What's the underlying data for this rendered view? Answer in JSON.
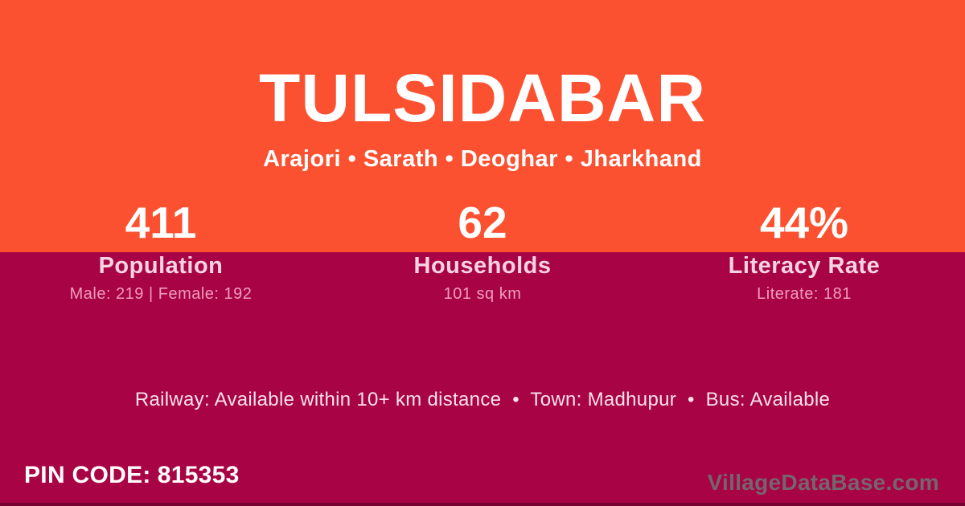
{
  "header": {
    "title": "TULSIDABAR",
    "location_path": "Arajori • Sarath • Deoghar • Jharkhand"
  },
  "stats": [
    {
      "value": "411",
      "label": "Population",
      "detail": "Male: 219 | Female: 192"
    },
    {
      "value": "62",
      "label": "Households",
      "detail": "101 sq km"
    },
    {
      "value": "44%",
      "label": "Literacy Rate",
      "detail": "Literate: 181"
    }
  ],
  "facilities": {
    "line": "Railway: Available within 10+ km distance  •  Town: Madhupur  •  Bus: Available"
  },
  "footer": {
    "pin_label": "PIN CODE:",
    "pin_code": "815353",
    "watermark": "VillageDataBase.com"
  },
  "colors": {
    "top_background": "#FC5130",
    "bottom_background": "#A80345",
    "label_pink": "#F8D3E2",
    "detail_pink": "#F09CBB"
  }
}
